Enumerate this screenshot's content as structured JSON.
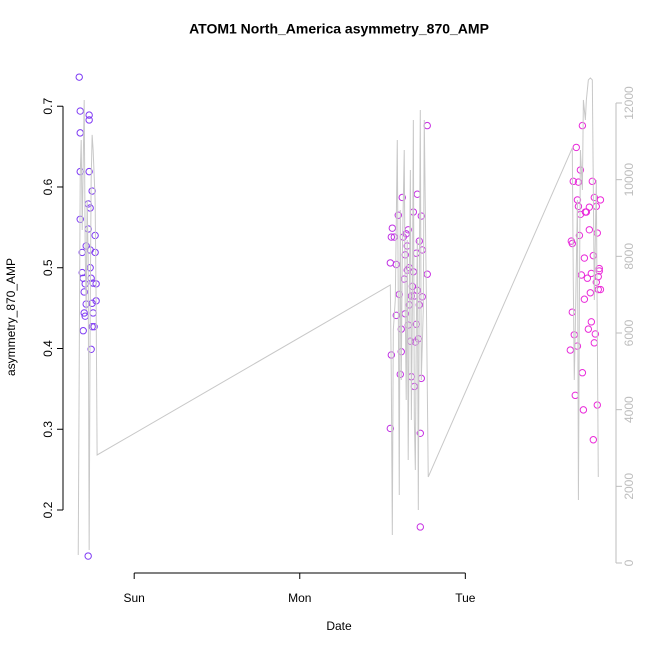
{
  "chart_data": {
    "type": "scatter",
    "title": "ATOM1 North_America asymmetry_870_AMP",
    "xlabel": "Date",
    "ylabel": "asymmetry_870_AMP",
    "xlim": [
      0.57,
      3.91
    ],
    "xticks": [
      {
        "value": 1,
        "label": "Sun"
      },
      {
        "value": 2,
        "label": "Mon"
      },
      {
        "value": 3,
        "label": "Tue"
      }
    ],
    "ylim": [
      0.122,
      0.756
    ],
    "yticks": [
      0.2,
      0.3,
      0.4,
      0.5,
      0.6,
      0.7
    ],
    "y2lim": [
      -261,
      13096
    ],
    "y2ticks": [
      0,
      2000,
      4000,
      6000,
      8000,
      10000,
      12000
    ],
    "series": [
      {
        "type": "scatter",
        "color_range": [
          "#7a3cf5",
          "#f02ad8"
        ],
        "x": [
          0.668,
          0.674,
          0.674,
          0.674,
          0.674,
          0.686,
          0.686,
          0.692,
          0.698,
          0.698,
          0.692,
          0.704,
          0.71,
          0.704,
          0.71,
          0.722,
          0.722,
          0.728,
          0.728,
          0.728,
          0.734,
          0.734,
          0.746,
          0.74,
          0.746,
          0.746,
          0.752,
          0.752,
          0.764,
          0.764,
          0.77,
          0.758,
          0.722,
          0.74,
          0.77,
          0.734,
          2.547,
          2.553,
          2.547,
          2.553,
          2.559,
          2.571,
          2.583,
          2.583,
          2.595,
          2.601,
          2.607,
          2.613,
          2.613,
          2.619,
          2.625,
          2.631,
          2.637,
          2.637,
          2.643,
          2.649,
          2.649,
          2.655,
          2.655,
          2.662,
          2.662,
          2.668,
          2.674,
          2.674,
          2.68,
          2.686,
          2.686,
          2.692,
          2.692,
          2.698,
          2.704,
          2.704,
          2.71,
          2.71,
          2.716,
          2.722,
          2.722,
          2.728,
          2.728,
          2.734,
          2.734,
          2.74,
          2.74,
          2.77,
          2.77,
          3.634,
          3.64,
          3.646,
          3.646,
          3.652,
          3.658,
          3.664,
          3.67,
          3.677,
          3.677,
          3.683,
          3.683,
          3.689,
          3.695,
          3.695,
          3.701,
          3.707,
          3.707,
          3.713,
          3.719,
          3.719,
          3.725,
          3.731,
          3.737,
          3.743,
          3.749,
          3.749,
          3.755,
          3.761,
          3.761,
          3.767,
          3.773,
          3.773,
          3.779,
          3.779,
          3.785,
          3.791,
          3.791,
          3.797,
          3.797,
          3.803,
          3.803,
          3.809,
          3.809,
          3.816,
          3.816
        ],
        "values": [
          0.736,
          0.694,
          0.667,
          0.619,
          0.56,
          0.519,
          0.494,
          0.487,
          0.47,
          0.444,
          0.422,
          0.44,
          0.455,
          0.48,
          0.527,
          0.548,
          0.579,
          0.689,
          0.683,
          0.619,
          0.574,
          0.522,
          0.595,
          0.487,
          0.456,
          0.427,
          0.444,
          0.481,
          0.519,
          0.54,
          0.459,
          0.427,
          0.143,
          0.399,
          0.48,
          0.5,
          0.301,
          0.392,
          0.506,
          0.538,
          0.549,
          0.538,
          0.504,
          0.441,
          0.565,
          0.467,
          0.368,
          0.396,
          0.424,
          0.587,
          0.538,
          0.486,
          0.516,
          0.443,
          0.542,
          0.527,
          0.497,
          0.429,
          0.547,
          0.5,
          0.454,
          0.409,
          0.365,
          0.465,
          0.477,
          0.569,
          0.495,
          0.353,
          0.465,
          0.408,
          0.518,
          0.43,
          0.591,
          0.472,
          0.412,
          0.533,
          0.454,
          0.295,
          0.179,
          0.363,
          0.564,
          0.464,
          0.522,
          0.676,
          0.492,
          0.398,
          0.533,
          0.53,
          0.445,
          0.607,
          0.417,
          0.342,
          0.649,
          0.403,
          0.584,
          0.606,
          0.576,
          0.54,
          0.621,
          0.566,
          0.491,
          0.676,
          0.37,
          0.324,
          0.512,
          0.461,
          0.569,
          0.569,
          0.487,
          0.424,
          0.575,
          0.547,
          0.469,
          0.493,
          0.433,
          0.607,
          0.287,
          0.515,
          0.407,
          0.587,
          0.418,
          0.576,
          0.482,
          0.543,
          0.33,
          0.489,
          0.473,
          0.496,
          0.499,
          0.473,
          0.584
        ]
      },
      {
        "type": "line",
        "axis": "y2",
        "color": "#c8c8c8",
        "x": [
          0.662,
          0.674,
          0.68,
          0.686,
          0.698,
          0.704,
          0.71,
          0.716,
          0.722,
          0.728,
          0.734,
          0.74,
          0.746,
          0.752,
          0.764,
          0.77,
          0.776,
          2.547,
          2.553,
          2.559,
          2.565,
          2.577,
          2.589,
          2.595,
          2.601,
          2.607,
          2.613,
          2.619,
          2.631,
          2.637,
          2.643,
          2.649,
          2.655,
          2.662,
          2.668,
          2.674,
          2.68,
          2.686,
          2.692,
          2.698,
          2.704,
          2.71,
          2.716,
          2.722,
          2.728,
          2.734,
          2.746,
          2.752,
          2.764,
          2.776,
          3.646,
          3.652,
          3.658,
          3.664,
          3.677,
          3.683,
          3.689,
          3.695,
          3.707,
          3.713,
          3.725,
          3.731,
          3.743,
          3.755,
          3.767,
          3.779,
          3.791,
          3.803
        ],
        "values": [
          209,
          10123,
          11036,
          8688,
          12080,
          8166,
          6601,
          9471,
          7905,
          339,
          6340,
          9992,
          11167,
          10775,
          9471,
          6862,
          2818,
          7253,
          4774,
          731,
          6079,
          6862,
          11036,
          6862,
          1774,
          9210,
          4774,
          7905,
          10775,
          6601,
          4253,
          8427,
          2687,
          7123,
          10253,
          3731,
          6601,
          11558,
          3731,
          2426,
          6079,
          8427,
          1383,
          7384,
          11819,
          4774,
          6601,
          11558,
          7123,
          2244,
          10827,
          7384,
          4774,
          6079,
          9471,
          1644,
          6862,
          10775,
          9732,
          12080,
          11558,
          12080,
          12602,
          12654,
          12602,
          6862,
          9992,
          2244
        ]
      }
    ]
  }
}
